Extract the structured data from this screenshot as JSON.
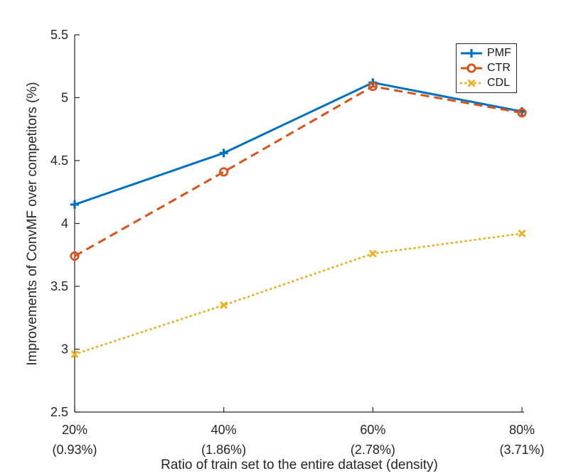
{
  "figure": {
    "background": "#ffffff",
    "axis_color": "#262626",
    "text_color": "#262626"
  },
  "chart_data": {
    "type": "line",
    "title": "",
    "xlabel": "Ratio of train set to the entire dataset (density)",
    "ylabel": "Improvements of ConvMF over competitors (%)",
    "x_categories": [
      "20%",
      "40%",
      "60%",
      "80%"
    ],
    "x_sublabels": [
      "(0.93%)",
      "(1.86%)",
      "(2.78%)",
      "(3.71%)"
    ],
    "ylim": [
      2.5,
      5.5
    ],
    "y_ticks": [
      2.5,
      3,
      3.5,
      4,
      4.5,
      5,
      5.5
    ],
    "y_tick_labels": [
      "2.5",
      "3",
      "3.5",
      "4",
      "4.5",
      "5",
      "5.5"
    ],
    "grid": false,
    "box": false,
    "legend_position": "top-right",
    "series": [
      {
        "name": "PMF",
        "color": "#0072BD",
        "line_style": "solid",
        "marker": "plus",
        "values": [
          4.15,
          4.56,
          5.12,
          4.89
        ]
      },
      {
        "name": "CTR",
        "color": "#D95319",
        "line_style": "dashed",
        "marker": "circle",
        "values": [
          3.74,
          4.41,
          5.09,
          4.88
        ]
      },
      {
        "name": "CDL",
        "color": "#EDB120",
        "line_style": "dotted",
        "marker": "x",
        "values": [
          2.96,
          3.35,
          3.76,
          3.92
        ]
      }
    ]
  }
}
